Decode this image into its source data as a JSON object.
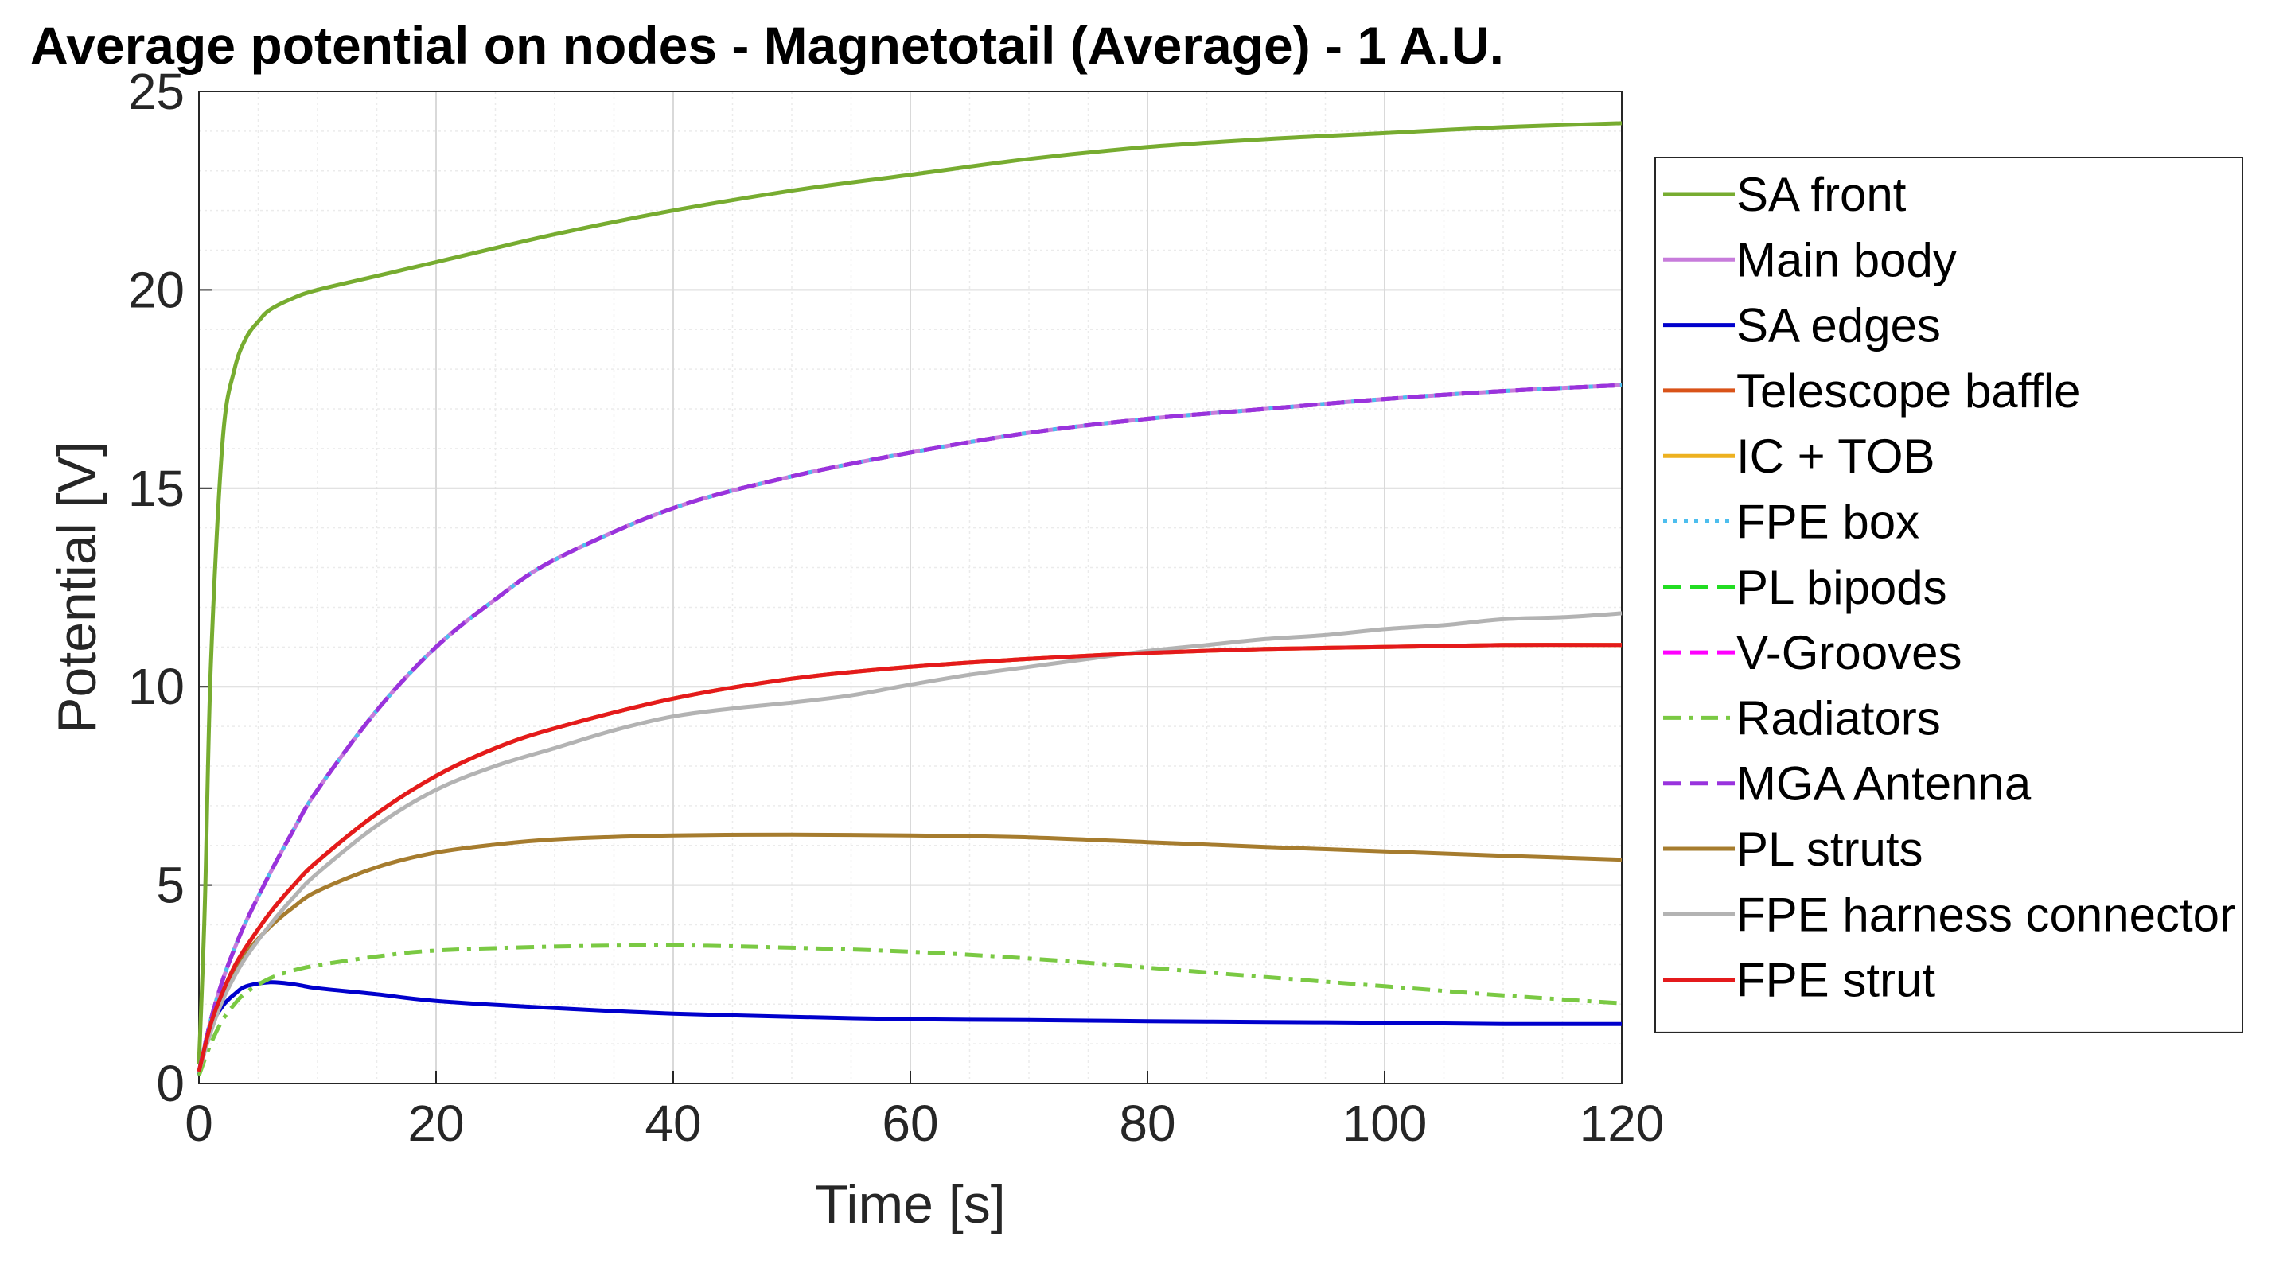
{
  "chart_data": {
    "type": "line",
    "title": "Average potential on nodes - Magnetotail (Average) - 1 A.U.",
    "xlabel": "Time [s]",
    "ylabel": "Potential [V]",
    "xlim": [
      0,
      120
    ],
    "ylim": [
      0,
      25
    ],
    "xticks": [
      0,
      20,
      40,
      60,
      80,
      100,
      120
    ],
    "yticks": [
      0,
      5,
      10,
      15,
      20,
      25
    ],
    "grid": true,
    "minor_grid": true,
    "legend_position": "outside-right",
    "series": [
      {
        "name": "SA front",
        "color": "#77AC30",
        "dash": "solid",
        "x": [
          0,
          0.5,
          1,
          2,
          3,
          4,
          5,
          6,
          8,
          10,
          15,
          20,
          30,
          40,
          50,
          60,
          70,
          80,
          90,
          100,
          110,
          120
        ],
        "y": [
          0.5,
          4.5,
          10.5,
          16.2,
          18.0,
          18.8,
          19.2,
          19.5,
          19.8,
          20.0,
          20.35,
          20.7,
          21.4,
          22.0,
          22.5,
          22.9,
          23.3,
          23.6,
          23.8,
          23.95,
          24.1,
          24.2
        ]
      },
      {
        "name": "Main body",
        "color": "#C77CDB",
        "dash": "solid",
        "x": [
          0,
          1,
          2,
          3,
          4,
          6,
          8,
          10,
          15,
          20,
          25,
          30,
          40,
          50,
          60,
          70,
          80,
          90,
          100,
          110,
          120
        ],
        "y": [
          0.3,
          1.6,
          2.6,
          3.4,
          4.1,
          5.3,
          6.4,
          7.4,
          9.4,
          11.0,
          12.2,
          13.2,
          14.5,
          15.3,
          15.9,
          16.4,
          16.75,
          17.0,
          17.25,
          17.45,
          17.6
        ]
      },
      {
        "name": "SA edges",
        "color": "#0000CC",
        "dash": "solid",
        "x": [
          0,
          1,
          2,
          3,
          4,
          6,
          8,
          10,
          15,
          20,
          30,
          40,
          50,
          60,
          70,
          80,
          90,
          100,
          110,
          120
        ],
        "y": [
          0.2,
          1.4,
          1.95,
          2.25,
          2.45,
          2.55,
          2.5,
          2.4,
          2.25,
          2.08,
          1.9,
          1.76,
          1.68,
          1.62,
          1.6,
          1.57,
          1.55,
          1.53,
          1.5,
          1.5
        ]
      },
      {
        "name": "Telescope baffle",
        "color": "#D95319",
        "dash": "solid",
        "x": [
          0,
          1,
          2,
          3,
          4,
          6,
          8,
          10,
          15,
          20,
          25,
          30,
          40,
          50,
          60,
          70,
          80,
          90,
          100,
          110,
          120
        ],
        "y": [
          0.3,
          1.5,
          2.3,
          2.95,
          3.45,
          4.3,
          5.0,
          5.6,
          6.8,
          7.75,
          8.45,
          8.95,
          9.7,
          10.2,
          10.5,
          10.7,
          10.85,
          10.95,
          11.0,
          11.05,
          11.05
        ]
      },
      {
        "name": "IC + TOB",
        "color": "#EDB120",
        "dash": "solid",
        "x": [
          0,
          1,
          2,
          3,
          4,
          6,
          8,
          10,
          15,
          20,
          25,
          30,
          40,
          50,
          60,
          70,
          80,
          90,
          100,
          110,
          120
        ],
        "y": [
          0.3,
          1.5,
          2.3,
          2.95,
          3.45,
          4.3,
          5.0,
          5.6,
          6.8,
          7.75,
          8.45,
          8.95,
          9.7,
          10.2,
          10.5,
          10.7,
          10.85,
          10.95,
          11.0,
          11.05,
          11.05
        ]
      },
      {
        "name": "FPE box",
        "color": "#4DBEEE",
        "dash": "dot",
        "x": [
          0,
          1,
          2,
          3,
          4,
          6,
          8,
          10,
          15,
          20,
          25,
          30,
          40,
          50,
          60,
          70,
          80,
          90,
          100,
          110,
          120
        ],
        "y": [
          0.3,
          1.6,
          2.6,
          3.4,
          4.1,
          5.3,
          6.4,
          7.4,
          9.4,
          11.0,
          12.2,
          13.2,
          14.5,
          15.3,
          15.9,
          16.4,
          16.75,
          17.0,
          17.25,
          17.45,
          17.6
        ]
      },
      {
        "name": "PL bipods",
        "color": "#22DD22",
        "dash": "dash",
        "x": [
          0,
          1,
          2,
          3,
          4,
          6,
          8,
          10,
          15,
          20,
          25,
          30,
          40,
          50,
          60,
          70,
          80,
          90,
          100,
          110,
          120
        ],
        "y": [
          0.3,
          1.6,
          2.6,
          3.4,
          4.1,
          5.3,
          6.4,
          7.4,
          9.4,
          11.0,
          12.2,
          13.2,
          14.5,
          15.3,
          15.9,
          16.4,
          16.75,
          17.0,
          17.25,
          17.45,
          17.6
        ]
      },
      {
        "name": "V-Grooves",
        "color": "#FF00FF",
        "dash": "dash",
        "x": [
          0,
          1,
          2,
          3,
          4,
          6,
          8,
          10,
          15,
          20,
          25,
          30,
          40,
          50,
          60,
          70,
          80,
          90,
          100,
          110,
          120
        ],
        "y": [
          0.3,
          1.6,
          2.6,
          3.4,
          4.1,
          5.3,
          6.4,
          7.4,
          9.4,
          11.0,
          12.2,
          13.2,
          14.5,
          15.3,
          15.9,
          16.4,
          16.75,
          17.0,
          17.25,
          17.45,
          17.6
        ]
      },
      {
        "name": "Radiators",
        "color": "#7AC943",
        "dash": "dashdot",
        "x": [
          0,
          1,
          2,
          3,
          4,
          6,
          8,
          10,
          15,
          20,
          30,
          40,
          50,
          60,
          70,
          80,
          90,
          100,
          110,
          120
        ],
        "y": [
          0.2,
          1.0,
          1.6,
          2.0,
          2.3,
          2.65,
          2.85,
          2.98,
          3.2,
          3.35,
          3.45,
          3.48,
          3.42,
          3.32,
          3.15,
          2.92,
          2.68,
          2.45,
          2.22,
          2.02
        ]
      },
      {
        "name": "MGA Antenna",
        "color": "#9933DD",
        "dash": "dash",
        "x": [
          0,
          1,
          2,
          3,
          4,
          6,
          8,
          10,
          15,
          20,
          25,
          30,
          40,
          50,
          60,
          70,
          80,
          90,
          100,
          110,
          120
        ],
        "y": [
          0.3,
          1.6,
          2.6,
          3.4,
          4.1,
          5.3,
          6.4,
          7.4,
          9.4,
          11.0,
          12.2,
          13.2,
          14.5,
          15.3,
          15.9,
          16.4,
          16.75,
          17.0,
          17.25,
          17.45,
          17.6
        ]
      },
      {
        "name": "PL struts",
        "color": "#A67C2E",
        "dash": "solid",
        "x": [
          0,
          1,
          2,
          3,
          4,
          6,
          8,
          10,
          15,
          20,
          25,
          30,
          40,
          50,
          60,
          70,
          80,
          90,
          100,
          110,
          120
        ],
        "y": [
          0.3,
          1.4,
          2.2,
          2.8,
          3.3,
          3.95,
          4.45,
          4.85,
          5.45,
          5.82,
          6.02,
          6.15,
          6.25,
          6.27,
          6.25,
          6.2,
          6.08,
          5.96,
          5.85,
          5.74,
          5.64
        ]
      },
      {
        "name": "FPE harness connector",
        "color": "#B3B3B3",
        "dash": "solid",
        "x": [
          0,
          1,
          2,
          3,
          4,
          6,
          8,
          10,
          15,
          20,
          25,
          30,
          35,
          40,
          45,
          50,
          55,
          60,
          65,
          70,
          75,
          80,
          85,
          90,
          95,
          100,
          105,
          110,
          115,
          120
        ],
        "y": [
          0.3,
          1.3,
          2.1,
          2.7,
          3.2,
          4.0,
          4.7,
          5.3,
          6.5,
          7.4,
          8.0,
          8.45,
          8.9,
          9.25,
          9.45,
          9.6,
          9.78,
          10.05,
          10.3,
          10.5,
          10.7,
          10.9,
          11.05,
          11.2,
          11.3,
          11.45,
          11.55,
          11.7,
          11.75,
          11.85
        ]
      },
      {
        "name": "FPE strut",
        "color": "#E41A1C",
        "dash": "solid",
        "x": [
          0,
          1,
          2,
          3,
          4,
          6,
          8,
          10,
          15,
          20,
          25,
          30,
          40,
          50,
          60,
          70,
          80,
          90,
          100,
          110,
          120
        ],
        "y": [
          0.3,
          1.5,
          2.3,
          2.95,
          3.45,
          4.3,
          5.0,
          5.6,
          6.8,
          7.75,
          8.45,
          8.95,
          9.7,
          10.2,
          10.5,
          10.7,
          10.85,
          10.95,
          11.0,
          11.05,
          11.05
        ]
      }
    ]
  }
}
